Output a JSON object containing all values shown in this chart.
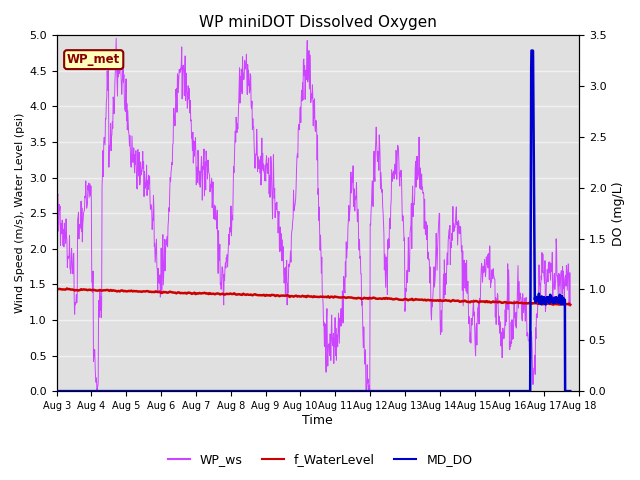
{
  "title": "WP miniDOT Dissolved Oxygen",
  "xlabel": "Time",
  "ylabel_left": "Wind Speed (m/s), Water Level (psi)",
  "ylabel_right": "DO (mg/L)",
  "ylim_left": [
    0.0,
    5.0
  ],
  "ylim_right": [
    0.0,
    3.5
  ],
  "x_tick_days": [
    3,
    4,
    5,
    6,
    7,
    8,
    9,
    10,
    11,
    12,
    13,
    14,
    15,
    16,
    17,
    18
  ],
  "x_tick_labels": [
    "Aug 3",
    "Aug 4",
    "Aug 5",
    "Aug 6",
    "Aug 7",
    "Aug 8",
    "Aug 9",
    "Aug 10",
    "Aug 11",
    "Aug 12",
    "Aug 13",
    "Aug 14",
    "Aug 15",
    "Aug 16",
    "Aug 17",
    "Aug 18"
  ],
  "bg_color": "#e0e0e0",
  "grid_color": "#f0f0f0",
  "wp_ws_color": "#cc44ff",
  "f_water_color": "#cc0000",
  "md_do_color": "#0000cc",
  "legend_items": [
    "WP_ws",
    "f_WaterLevel",
    "MD_DO"
  ],
  "annotation_text": "WP_met",
  "annotation_box_color": "#ffffbb",
  "annotation_border_color": "#880000",
  "annotation_text_color": "#880000",
  "figsize": [
    6.4,
    4.8
  ],
  "dpi": 100
}
